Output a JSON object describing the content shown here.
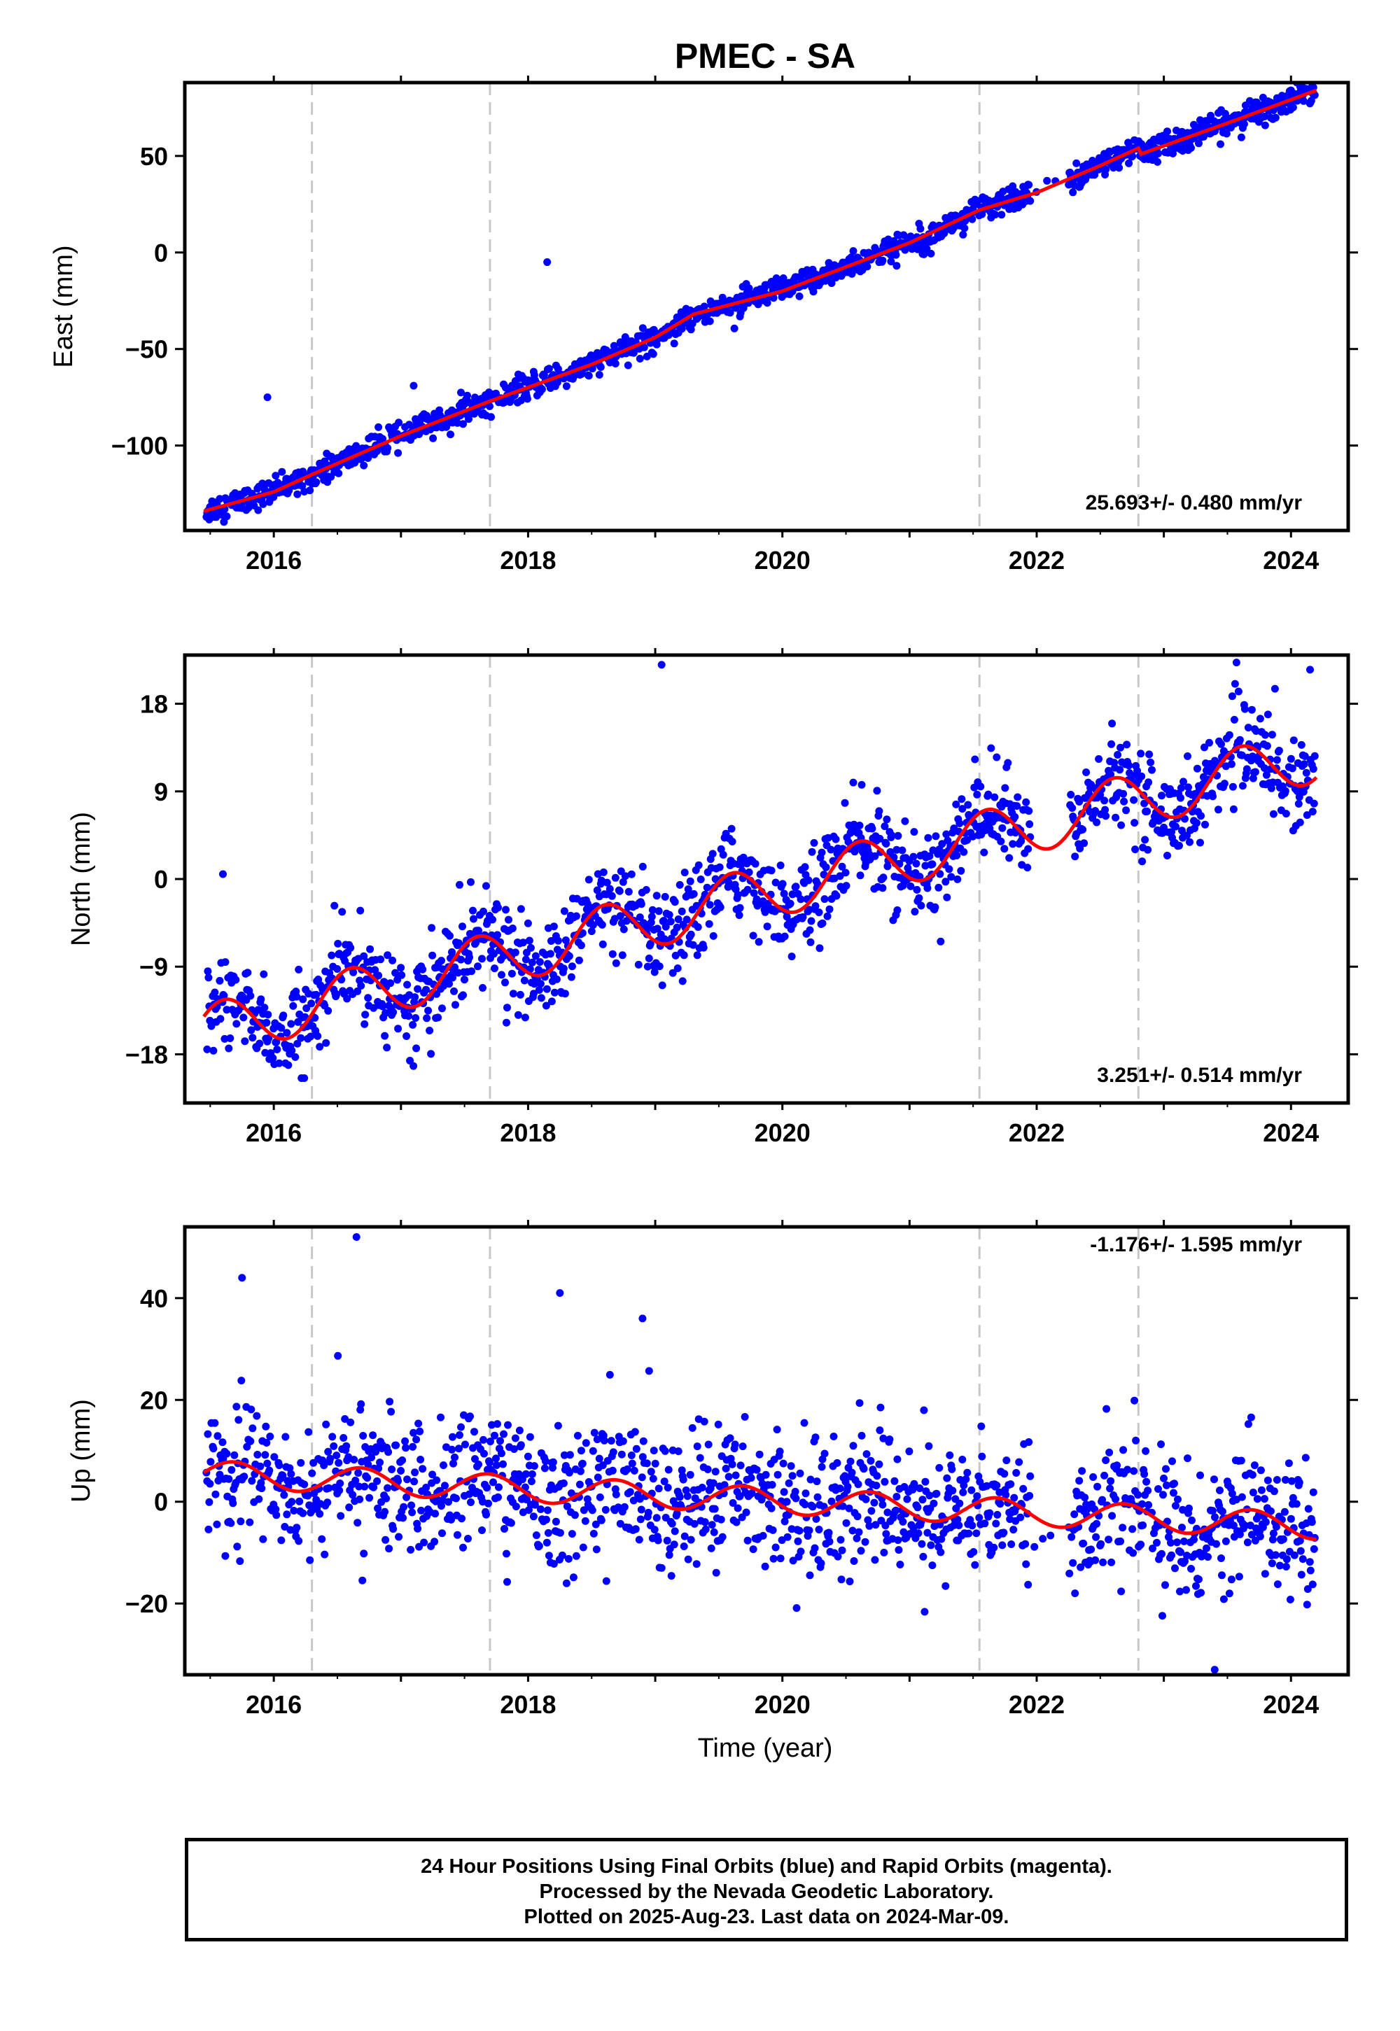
{
  "title": "PMEC - SA",
  "x_axis": {
    "label": "Time (year)",
    "ticks": [
      2016,
      2018,
      2020,
      2022,
      2024
    ],
    "range": [
      2015.3,
      2024.45
    ]
  },
  "events": [
    2016.3,
    2017.7,
    2021.55,
    2022.8
  ],
  "colors": {
    "points": "#0000ff",
    "model": "#ff0000",
    "events": "#c8c8c8",
    "frame": "#000000"
  },
  "chart_data": [
    {
      "type": "scatter",
      "ylabel": "East (mm)",
      "ylim": [
        -144,
        88
      ],
      "yticks": [
        -100,
        -50,
        0,
        50
      ],
      "rate": "25.693+/- 0.480 mm/yr",
      "model": {
        "x": [
          2015.45,
          2016.0,
          2016.3,
          2017.0,
          2017.7,
          2018.5,
          2019.0,
          2019.3,
          2020.0,
          2021.0,
          2021.55,
          2022.0,
          2022.5,
          2022.8,
          2022.82,
          2023.5,
          2024.2
        ],
        "y": [
          -134,
          -124,
          -115,
          -95,
          -77,
          -58,
          -44,
          -32,
          -20,
          5,
          22,
          31,
          45,
          54,
          51,
          67,
          84
        ]
      },
      "outliers": [
        {
          "x": 2015.95,
          "y": -75
        },
        {
          "x": 2018.15,
          "y": -5
        },
        {
          "x": 2017.1,
          "y": -69
        }
      ],
      "noise": 3.2
    },
    {
      "type": "scatter",
      "ylabel": "North (mm)",
      "ylim": [
        -23,
        23
      ],
      "yticks": [
        -18,
        -9,
        0,
        9,
        18
      ],
      "rate": "3.251+/- 0.514 mm/yr",
      "model": {
        "base": -15.7,
        "slope": 3.251,
        "x0": 2015.45,
        "amplitude": 2.8,
        "period": 1.0,
        "phase": 0.6
      },
      "outliers": [
        {
          "x": 2019.05,
          "y": 22
        },
        {
          "x": 2024.15,
          "y": 21.5
        },
        {
          "x": 2015.6,
          "y": 0.5
        }
      ],
      "noise": 2.3
    },
    {
      "type": "scatter",
      "ylabel": "Up (mm)",
      "ylim": [
        -34,
        54
      ],
      "yticks": [
        -20,
        0,
        20,
        40
      ],
      "rate": "-1.176+/- 1.595 mm/yr",
      "model": {
        "base": 5.5,
        "slope": -1.176,
        "x0": 2015.45,
        "amplitude": 2.6,
        "period": 1.0,
        "phase": 0.1
      },
      "outliers": [
        {
          "x": 2016.65,
          "y": 52
        },
        {
          "x": 2018.25,
          "y": 41
        },
        {
          "x": 2015.75,
          "y": 44
        },
        {
          "x": 2018.9,
          "y": 36
        },
        {
          "x": 2023.4,
          "y": -33
        }
      ],
      "noise": 6.5
    }
  ],
  "footer": {
    "line1": "24 Hour Positions Using Final Orbits (blue) and Rapid Orbits (magenta).",
    "line2": "Processed by the Nevada Geodetic Laboratory.",
    "line3": "Plotted on 2025-Aug-23. Last data on 2024-Mar-09."
  }
}
